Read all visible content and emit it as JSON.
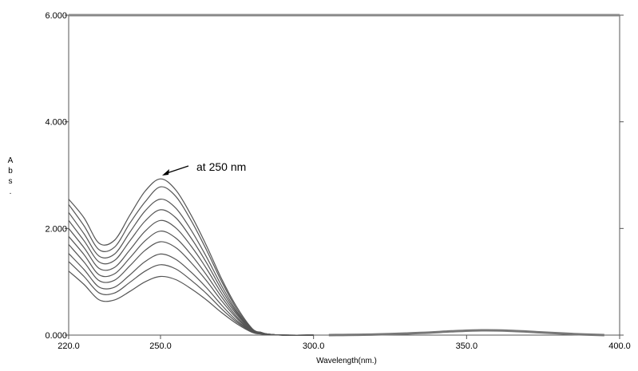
{
  "chart_data": {
    "type": "line",
    "title": "",
    "xlabel": "Wavelength(nm.)",
    "ylabel": "Abs.",
    "ylabel_chars": [
      "A",
      "b",
      "s",
      "."
    ],
    "xlim": [
      220,
      400
    ],
    "ylim": [
      0,
      6
    ],
    "x_ticks": [
      {
        "value": 220,
        "label": "220.0"
      },
      {
        "value": 250,
        "label": "250.0"
      },
      {
        "value": 300,
        "label": "300.0"
      },
      {
        "value": 350,
        "label": "350.0"
      },
      {
        "value": 400,
        "label": "400.0"
      }
    ],
    "y_ticks": [
      {
        "value": 0,
        "label": "0.000"
      },
      {
        "value": 2,
        "label": "2.000"
      },
      {
        "value": 4,
        "label": "4.000"
      },
      {
        "value": 6,
        "label": "6.000"
      }
    ],
    "grid": false,
    "line_color": "#555555",
    "annotation": {
      "text": "at 250 nm",
      "x": 250,
      "y": 2.95
    },
    "spectrum_x": [
      220,
      225,
      230,
      235,
      240,
      245,
      250,
      255,
      260,
      265,
      270,
      275,
      280,
      283,
      285,
      290,
      300
    ],
    "series": [
      {
        "values": [
          2.55,
          2.2,
          1.72,
          1.78,
          2.25,
          2.7,
          2.93,
          2.72,
          2.25,
          1.68,
          1.05,
          0.52,
          0.12,
          0.05,
          0.02,
          0.0,
          0.0
        ]
      },
      {
        "values": [
          2.45,
          2.05,
          1.6,
          1.65,
          2.1,
          2.5,
          2.78,
          2.6,
          2.15,
          1.6,
          1.0,
          0.48,
          0.11,
          0.05,
          0.02,
          0.0,
          0.0
        ]
      },
      {
        "values": [
          2.3,
          1.9,
          1.48,
          1.52,
          1.93,
          2.33,
          2.55,
          2.38,
          1.97,
          1.47,
          0.92,
          0.44,
          0.1,
          0.04,
          0.02,
          0.0,
          0.0
        ]
      },
      {
        "values": [
          2.15,
          1.77,
          1.37,
          1.4,
          1.77,
          2.14,
          2.35,
          2.2,
          1.82,
          1.36,
          0.85,
          0.41,
          0.1,
          0.04,
          0.02,
          0.0,
          0.0
        ]
      },
      {
        "values": [
          2.0,
          1.64,
          1.25,
          1.27,
          1.6,
          1.95,
          2.15,
          2.01,
          1.67,
          1.25,
          0.78,
          0.38,
          0.09,
          0.04,
          0.02,
          0.0,
          0.0
        ]
      },
      {
        "values": [
          1.85,
          1.51,
          1.13,
          1.15,
          1.45,
          1.77,
          1.95,
          1.82,
          1.51,
          1.13,
          0.71,
          0.34,
          0.08,
          0.03,
          0.01,
          0.0,
          0.0
        ]
      },
      {
        "values": [
          1.7,
          1.37,
          1.02,
          1.03,
          1.3,
          1.59,
          1.75,
          1.64,
          1.36,
          1.02,
          0.64,
          0.31,
          0.07,
          0.03,
          0.01,
          0.0,
          0.0
        ]
      },
      {
        "values": [
          1.53,
          1.23,
          0.9,
          0.9,
          1.13,
          1.38,
          1.52,
          1.42,
          1.18,
          0.89,
          0.56,
          0.27,
          0.07,
          0.03,
          0.01,
          0.0,
          0.0
        ]
      },
      {
        "values": [
          1.38,
          1.1,
          0.79,
          0.79,
          0.99,
          1.2,
          1.32,
          1.24,
          1.03,
          0.78,
          0.49,
          0.24,
          0.06,
          0.02,
          0.01,
          0.0,
          0.0
        ]
      },
      {
        "values": [
          1.2,
          0.95,
          0.66,
          0.66,
          0.82,
          1.0,
          1.1,
          1.04,
          0.87,
          0.66,
          0.42,
          0.21,
          0.05,
          0.02,
          0.01,
          0.0,
          0.0
        ]
      }
    ],
    "baseline_bump": {
      "x": [
        305,
        320,
        335,
        345,
        355,
        365,
        375,
        385,
        395
      ],
      "values": [
        0.0,
        0.01,
        0.04,
        0.07,
        0.09,
        0.08,
        0.05,
        0.02,
        0.0
      ]
    }
  }
}
